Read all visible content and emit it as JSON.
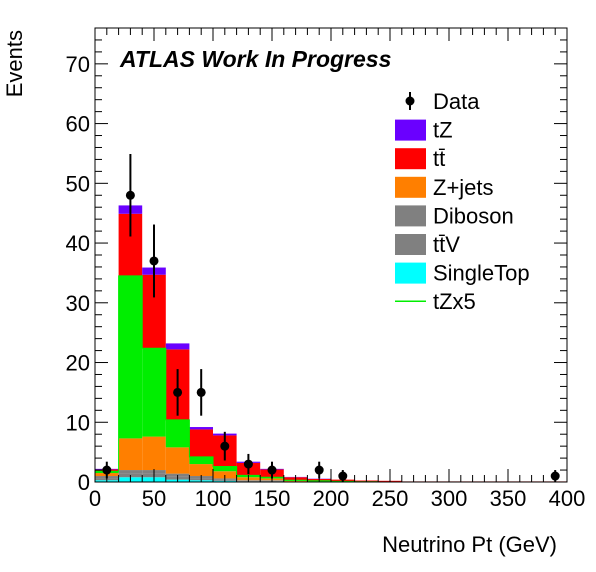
{
  "chart_data": {
    "type": "bar",
    "stacked": true,
    "title": "ATLAS Work In Progress",
    "xlabel": "Neutrino Pt (GeV)",
    "ylabel": "Events",
    "xlim": [
      0,
      400
    ],
    "ylim": [
      0,
      76
    ],
    "x_ticks": [
      0,
      50,
      100,
      150,
      200,
      250,
      300,
      350,
      400
    ],
    "y_ticks": [
      0,
      10,
      20,
      30,
      40,
      50,
      60,
      70
    ],
    "bin_edges": [
      0,
      20,
      40,
      60,
      80,
      100,
      120,
      140,
      160,
      180,
      200,
      220,
      240,
      260,
      280,
      300,
      320,
      340,
      360,
      380,
      400
    ],
    "legend_position": "top-right",
    "series": [
      {
        "name": "SingleTop",
        "color": "#00ffff",
        "values": [
          0.3,
          0.8,
          0.8,
          0.4,
          0.3,
          0.2,
          0.1,
          0.1,
          0,
          0,
          0,
          0,
          0,
          0,
          0,
          0,
          0,
          0,
          0,
          0
        ]
      },
      {
        "name": "tt̄V",
        "color": "#808080",
        "values": [
          0.3,
          0.6,
          0.6,
          0.5,
          0.3,
          0.2,
          0.1,
          0.1,
          0.05,
          0,
          0,
          0,
          0,
          0,
          0,
          0,
          0,
          0,
          0,
          0
        ]
      },
      {
        "name": "Diboson",
        "color": "#808080",
        "values": [
          0.4,
          0.6,
          0.6,
          0.5,
          0.4,
          0.2,
          0.1,
          0.1,
          0.05,
          0,
          0,
          0,
          0,
          0,
          0,
          0,
          0,
          0,
          0,
          0
        ]
      },
      {
        "name": "Z+jets",
        "color": "#ff7f00",
        "values": [
          0.5,
          5.3,
          5.6,
          4.4,
          2.0,
          1.2,
          0.5,
          0.3,
          0.1,
          0.1,
          0.05,
          0,
          0,
          0,
          0,
          0,
          0,
          0,
          0,
          0
        ]
      },
      {
        "name": "tZx5",
        "color": "#00ee00",
        "values": [
          0.3,
          27.2,
          14.8,
          4.6,
          1.2,
          0.8,
          0.3,
          0.2,
          0.1,
          0.1,
          0.05,
          0.05,
          0,
          0,
          0,
          0,
          0,
          0,
          0,
          0
        ]
      },
      {
        "name": "tt̄",
        "color": "#ff0000",
        "values": [
          0.3,
          10.4,
          12.3,
          11.8,
          4.6,
          5.2,
          2.1,
          1.3,
          0.5,
          0.3,
          0.3,
          0.2,
          0.2,
          0.1,
          0.1,
          0.1,
          0.1,
          0.1,
          0.1,
          0.1
        ]
      },
      {
        "name": "tZ",
        "color": "#6a00ff",
        "values": [
          0.1,
          1.4,
          1.2,
          1.0,
          0.4,
          0.3,
          0.2,
          0.1,
          0.05,
          0.05,
          0,
          0,
          0,
          0,
          0,
          0,
          0,
          0,
          0,
          0
        ]
      }
    ],
    "data_points": [
      {
        "x": 10,
        "y": 2,
        "err": 1.4
      },
      {
        "x": 30,
        "y": 48,
        "err": 6.9
      },
      {
        "x": 50,
        "y": 37,
        "err": 6.1
      },
      {
        "x": 70,
        "y": 15,
        "err": 3.9
      },
      {
        "x": 90,
        "y": 15,
        "err": 3.9
      },
      {
        "x": 110,
        "y": 6,
        "err": 2.4
      },
      {
        "x": 130,
        "y": 3,
        "err": 1.7
      },
      {
        "x": 150,
        "y": 2,
        "err": 1.4
      },
      {
        "x": 190,
        "y": 2,
        "err": 1.4
      },
      {
        "x": 210,
        "y": 1,
        "err": 1.0
      },
      {
        "x": 390,
        "y": 1,
        "err": 1.0
      }
    ],
    "legend": [
      {
        "label": "Data",
        "kind": "marker",
        "color": "#000000"
      },
      {
        "label": "tZ",
        "kind": "box",
        "color": "#6a00ff"
      },
      {
        "label": "tt̄",
        "kind": "box",
        "color": "#ff0000"
      },
      {
        "label": "Z+jets",
        "kind": "box",
        "color": "#ff7f00"
      },
      {
        "label": "Diboson",
        "kind": "box",
        "color": "#808080"
      },
      {
        "label": "tt̄V",
        "kind": "box",
        "color": "#808080"
      },
      {
        "label": "SingleTop",
        "kind": "box",
        "color": "#00ffff"
      },
      {
        "label": "tZx5",
        "kind": "line",
        "color": "#00ee00"
      }
    ]
  }
}
